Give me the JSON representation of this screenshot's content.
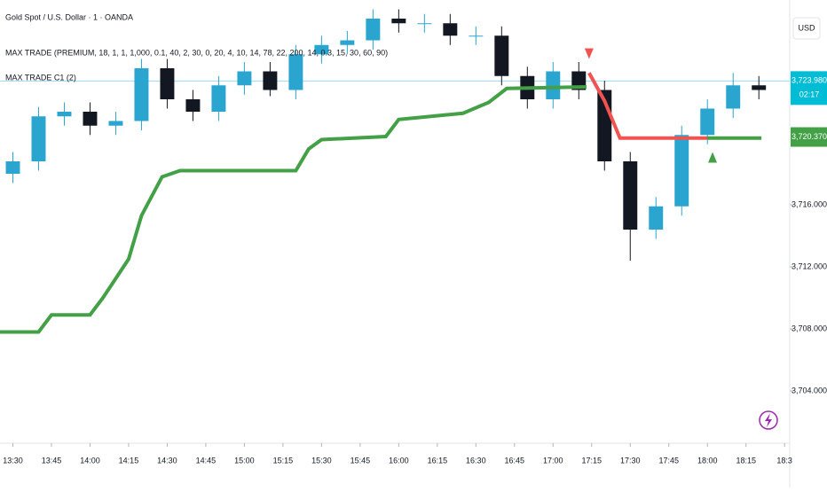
{
  "chart_data": {
    "type": "candlestick",
    "title": "Gold Spot / U.S. Dollar · 1 · OANDA",
    "indicators": [
      "MAX TRADE (PREMIUM, 18, 1, 1, 1,000, 0.1, 40, 2, 30, 0, 20, 4, 10, 14, 78, 22, 200, 14, 0.3, 15, 30, 60, 90)",
      "MAX TRADE C1 (2)"
    ],
    "currency": "USD",
    "x": [
      810,
      820,
      830,
      840,
      850,
      860,
      870,
      880,
      890,
      900,
      910,
      920,
      930,
      940,
      950,
      960,
      970,
      980,
      990,
      1000,
      1010,
      1020,
      1030,
      1040,
      1050,
      1060,
      1070,
      1080,
      1090,
      1100
    ],
    "open": [
      3718.0,
      3718.8,
      3721.7,
      3722.0,
      3721.1,
      3721.4,
      3724.8,
      3722.8,
      3722.0,
      3723.7,
      3724.6,
      3723.4,
      3725.7,
      3726.3,
      3726.6,
      3728.0,
      3727.7,
      3727.7,
      3726.9,
      3726.9,
      3724.3,
      3722.8,
      3724.6,
      3723.4,
      3718.8,
      3714.4,
      3715.9,
      3720.5,
      3722.2,
      3723.7
    ],
    "high": [
      3719.4,
      3722.3,
      3722.6,
      3722.6,
      3722.0,
      3725.4,
      3725.4,
      3723.4,
      3724.3,
      3725.2,
      3725.2,
      3726.3,
      3726.9,
      3727.2,
      3728.6,
      3728.6,
      3728.3,
      3728.3,
      3727.5,
      3727.5,
      3724.9,
      3725.2,
      3725.2,
      3724.0,
      3719.4,
      3716.5,
      3721.1,
      3722.8,
      3724.5,
      3724.3
    ],
    "low": [
      3717.4,
      3718.2,
      3721.1,
      3720.5,
      3720.5,
      3720.8,
      3722.2,
      3721.4,
      3721.4,
      3723.1,
      3723.0,
      3722.8,
      3725.1,
      3725.7,
      3726.0,
      3727.1,
      3727.1,
      3726.3,
      3726.3,
      3723.7,
      3722.2,
      3722.2,
      3722.8,
      3718.2,
      3712.4,
      3713.8,
      3715.3,
      3719.9,
      3721.6,
      3722.8
    ],
    "close": [
      3718.8,
      3721.7,
      3722.0,
      3721.1,
      3721.4,
      3724.8,
      3722.8,
      3722.0,
      3723.7,
      3724.6,
      3723.4,
      3725.7,
      3726.3,
      3726.6,
      3728.0,
      3727.7,
      3727.7,
      3726.9,
      3726.9,
      3724.3,
      3722.8,
      3724.6,
      3723.4,
      3718.8,
      3714.4,
      3715.9,
      3720.5,
      3722.2,
      3723.7,
      3723.4
    ],
    "up_color": "#2aa5d0",
    "down_color": "#131722",
    "lines": [
      {
        "color": "#43a047",
        "x": [
          805,
          820,
          825,
          840,
          845,
          855,
          860,
          868,
          875,
          920,
          925,
          930,
          955,
          960,
          985,
          995,
          1002,
          1033
        ],
        "values": [
          3707.8,
          3707.8,
          3708.9,
          3708.9,
          3710.0,
          3712.5,
          3715.3,
          3717.8,
          3718.2,
          3718.2,
          3719.6,
          3720.2,
          3720.4,
          3721.5,
          3721.9,
          3722.6,
          3723.5,
          3723.6
        ]
      },
      {
        "color": "#f05350",
        "x": [
          1034,
          1040,
          1046,
          1080
        ],
        "values": [
          3724.5,
          3722.7,
          3720.3,
          3720.3
        ]
      },
      {
        "color": "#43a047",
        "x": [
          1080,
          1101
        ],
        "values": [
          3720.3,
          3720.3
        ]
      }
    ],
    "signals": [
      {
        "x": 1034,
        "value": 3725.4,
        "color": "#f05350",
        "shape": "down"
      },
      {
        "x": 1082,
        "value": 3719.4,
        "color": "#43a047",
        "shape": "up"
      }
    ],
    "last_price": {
      "value": 3723.98,
      "label": "3,723.980"
    },
    "countdown": "02:17",
    "stop_price": {
      "value": 3720.37,
      "label": "3,720.370"
    },
    "xlim": [
      805,
      1112
    ],
    "xticks": [
      {
        "value": 810,
        "label": "13:30"
      },
      {
        "value": 825,
        "label": "13:45"
      },
      {
        "value": 840,
        "label": "14:00"
      },
      {
        "value": 855,
        "label": "14:15"
      },
      {
        "value": 870,
        "label": "14:30"
      },
      {
        "value": 885,
        "label": "14:45"
      },
      {
        "value": 900,
        "label": "15:00"
      },
      {
        "value": 915,
        "label": "15:15"
      },
      {
        "value": 930,
        "label": "15:30"
      },
      {
        "value": 945,
        "label": "15:45"
      },
      {
        "value": 960,
        "label": "16:00"
      },
      {
        "value": 975,
        "label": "16:15"
      },
      {
        "value": 990,
        "label": "16:30"
      },
      {
        "value": 1005,
        "label": "16:45"
      },
      {
        "value": 1020,
        "label": "17:00"
      },
      {
        "value": 1035,
        "label": "17:15"
      },
      {
        "value": 1050,
        "label": "17:30"
      },
      {
        "value": 1065,
        "label": "17:45"
      },
      {
        "value": 1080,
        "label": "18:00"
      },
      {
        "value": 1095,
        "label": "18:15"
      },
      {
        "value": 1110,
        "label": "18:3"
      }
    ],
    "ylim": [
      3701.2,
      3729.2
    ],
    "yticks": [
      {
        "value": 3704,
        "label": "3,704.000"
      },
      {
        "value": 3708,
        "label": "3,708.000"
      },
      {
        "value": 3712,
        "label": "3,712.000"
      },
      {
        "value": 3716,
        "label": "3,716.000"
      }
    ]
  }
}
